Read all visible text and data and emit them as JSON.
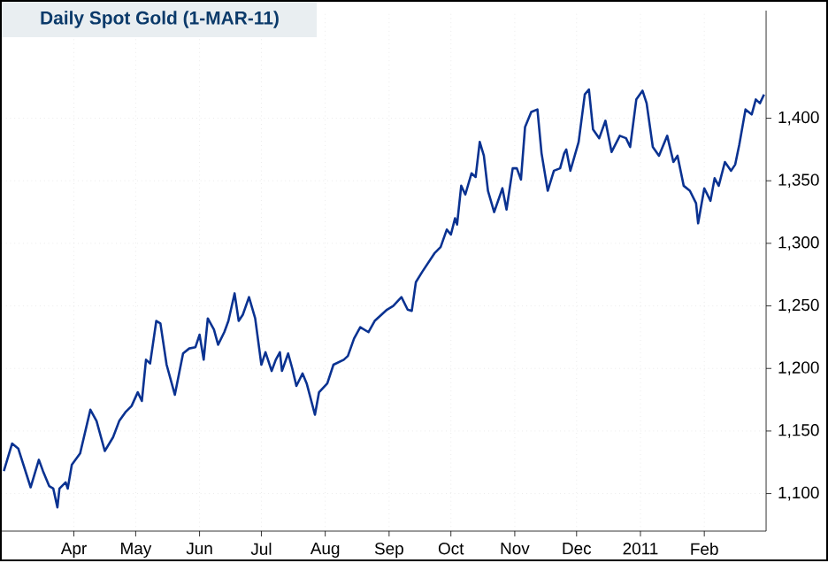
{
  "chart_data": {
    "type": "line",
    "title": "Daily Spot Gold (1-MAR-11)",
    "x": [
      "2010-02-26",
      "2010-03-02",
      "2010-03-05",
      "2010-03-11",
      "2010-03-15",
      "2010-03-17",
      "2010-03-20",
      "2010-03-22",
      "2010-03-24",
      "2010-03-25",
      "2010-03-28",
      "2010-03-29",
      "2010-03-31",
      "2010-04-04",
      "2010-04-09",
      "2010-04-12",
      "2010-04-16",
      "2010-04-20",
      "2010-04-23",
      "2010-04-26",
      "2010-04-29",
      "2010-05-02",
      "2010-05-04",
      "2010-05-06",
      "2010-05-08",
      "2010-05-11",
      "2010-05-13",
      "2010-05-16",
      "2010-05-20",
      "2010-05-24",
      "2010-05-27",
      "2010-05-30",
      "2010-06-01",
      "2010-06-03",
      "2010-06-05",
      "2010-06-08",
      "2010-06-10",
      "2010-06-13",
      "2010-06-15",
      "2010-06-18",
      "2010-06-20",
      "2010-06-22",
      "2010-06-25",
      "2010-06-28",
      "2010-07-01",
      "2010-07-03",
      "2010-07-06",
      "2010-07-08",
      "2010-07-10",
      "2010-07-11",
      "2010-07-14",
      "2010-07-16",
      "2010-07-18",
      "2010-07-21",
      "2010-07-23",
      "2010-07-27",
      "2010-07-29",
      "2010-08-02",
      "2010-08-05",
      "2010-08-10",
      "2010-08-12",
      "2010-08-15",
      "2010-08-18",
      "2010-08-22",
      "2010-08-25",
      "2010-08-31",
      "2010-09-03",
      "2010-09-07",
      "2010-09-10",
      "2010-09-12",
      "2010-09-14",
      "2010-09-17",
      "2010-09-23",
      "2010-09-26",
      "2010-09-29",
      "2010-10-01",
      "2010-10-03",
      "2010-10-04",
      "2010-10-06",
      "2010-10-08",
      "2010-10-11",
      "2010-10-13",
      "2010-10-15",
      "2010-10-17",
      "2010-10-19",
      "2010-10-22",
      "2010-10-26",
      "2010-10-28",
      "2010-10-31",
      "2010-11-02",
      "2010-11-04",
      "2010-11-06",
      "2010-11-09",
      "2010-11-12",
      "2010-11-14",
      "2010-11-17",
      "2010-11-20",
      "2010-11-23",
      "2010-11-25",
      "2010-11-26",
      "2010-11-28",
      "2010-12-02",
      "2010-12-05",
      "2010-12-07",
      "2010-12-09",
      "2010-12-12",
      "2010-12-15",
      "2010-12-18",
      "2010-12-22",
      "2010-12-25",
      "2010-12-27",
      "2010-12-30",
      "2011-01-02",
      "2011-01-04",
      "2011-01-07",
      "2011-01-10",
      "2011-01-14",
      "2011-01-17",
      "2011-01-19",
      "2011-01-22",
      "2011-01-25",
      "2011-01-28",
      "2011-01-29",
      "2011-02-01",
      "2011-02-04",
      "2011-02-06",
      "2011-02-08",
      "2011-02-11",
      "2011-02-14",
      "2011-02-16",
      "2011-02-18",
      "2011-02-21",
      "2011-02-24",
      "2011-02-26",
      "2011-02-28",
      "2011-03-02"
    ],
    "series": [
      {
        "color": "#0a3291",
        "values": [
          1118,
          1140,
          1136,
          1105,
          1127,
          1118,
          1106,
          1104,
          1089,
          1104,
          1109,
          1104,
          1123,
          1132,
          1167,
          1158,
          1134,
          1145,
          1158,
          1165,
          1170,
          1181,
          1174,
          1207,
          1204,
          1238,
          1236,
          1203,
          1179,
          1212,
          1216,
          1217,
          1227,
          1207,
          1240,
          1231,
          1219,
          1229,
          1238,
          1260,
          1238,
          1243,
          1257,
          1240,
          1203,
          1213,
          1198,
          1207,
          1213,
          1198,
          1212,
          1200,
          1186,
          1196,
          1188,
          1163,
          1181,
          1188,
          1203,
          1207,
          1210,
          1224,
          1233,
          1229,
          1238,
          1247,
          1250,
          1257,
          1247,
          1246,
          1269,
          1277,
          1292,
          1297,
          1311,
          1307,
          1320,
          1315,
          1346,
          1339,
          1356,
          1353,
          1381,
          1370,
          1342,
          1325,
          1344,
          1327,
          1360,
          1360,
          1351,
          1393,
          1405,
          1407,
          1372,
          1342,
          1358,
          1360,
          1372,
          1375,
          1358,
          1381,
          1419,
          1423,
          1391,
          1384,
          1398,
          1373,
          1386,
          1384,
          1377,
          1415,
          1422,
          1412,
          1377,
          1370,
          1386,
          1365,
          1370,
          1346,
          1342,
          1332,
          1316,
          1344,
          1334,
          1352,
          1346,
          1365,
          1358,
          1363,
          1379,
          1407,
          1403,
          1415,
          1412,
          1419
        ]
      }
    ],
    "xlim": [
      "2010-02-25",
      "2011-03-03"
    ],
    "xticks": [
      {
        "value": "2010-04-01",
        "label": "Apr"
      },
      {
        "value": "2010-05-01",
        "label": "May"
      },
      {
        "value": "2010-06-01",
        "label": "Jun"
      },
      {
        "value": "2010-07-01",
        "label": "Jul"
      },
      {
        "value": "2010-08-01",
        "label": "Aug"
      },
      {
        "value": "2010-09-01",
        "label": "Sep"
      },
      {
        "value": "2010-10-01",
        "label": "Oct"
      },
      {
        "value": "2010-11-01",
        "label": "Nov"
      },
      {
        "value": "2010-12-01",
        "label": "Dec"
      },
      {
        "value": "2011-01-01",
        "label": "2011"
      },
      {
        "value": "2011-02-01",
        "label": "Feb"
      }
    ],
    "ylim": [
      1070,
      1486
    ],
    "yticks": [
      {
        "value": 1100,
        "label": "1,100"
      },
      {
        "value": 1150,
        "label": "1,150"
      },
      {
        "value": 1200,
        "label": "1,200"
      },
      {
        "value": 1250,
        "label": "1,250"
      },
      {
        "value": 1300,
        "label": "1,300"
      },
      {
        "value": 1350,
        "label": "1,350"
      },
      {
        "value": 1400,
        "label": "1,400"
      }
    ],
    "grid": true,
    "marker": "none",
    "line_style": "solid"
  }
}
